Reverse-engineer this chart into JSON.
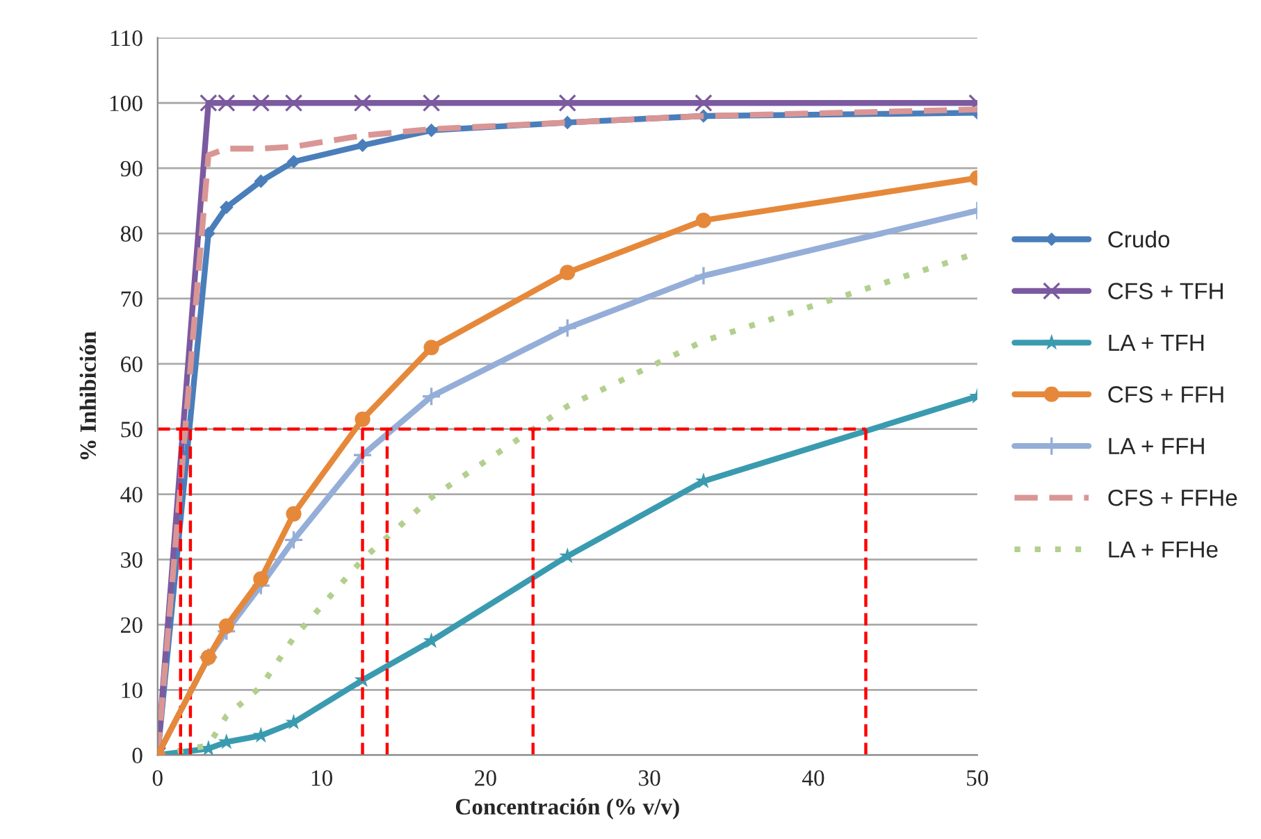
{
  "chart_data": {
    "type": "line",
    "xlabel": "Concentración (% v/v)",
    "ylabel": "% Inhibición",
    "xlim": [
      0,
      50
    ],
    "xticks": [
      0,
      10,
      20,
      30,
      40,
      50
    ],
    "ylim": [
      0,
      110
    ],
    "yticks": [
      0,
      10,
      20,
      30,
      40,
      50,
      60,
      70,
      80,
      90,
      100,
      110
    ],
    "grid": "y",
    "legend": "right",
    "x": [
      0,
      3.1,
      4.2,
      6.3,
      8.3,
      12.5,
      16.7,
      25,
      33.3,
      50
    ],
    "series": [
      {
        "name": "Crudo",
        "color": "#4a7ebb",
        "marker": "diamond",
        "line_style": "solid",
        "values": [
          0,
          80,
          84,
          88,
          91,
          93.5,
          95.8,
          97,
          98,
          98.5
        ]
      },
      {
        "name": "CFS + TFH",
        "color": "#7b5aa0",
        "marker": "cross",
        "line_style": "solid",
        "values": [
          0,
          100,
          100,
          100,
          100,
          100,
          100,
          100,
          100,
          100
        ]
      },
      {
        "name": "LA + TFH",
        "color": "#3a9bb0",
        "marker": "star",
        "line_style": "solid",
        "values": [
          0,
          1,
          2,
          3,
          5,
          11.5,
          17.5,
          30.5,
          42,
          55
        ]
      },
      {
        "name": "CFS + FFH",
        "color": "#e6883a",
        "marker": "circle",
        "line_style": "solid",
        "values": [
          0,
          15,
          19.8,
          27,
          37,
          51.5,
          62.5,
          74,
          82,
          88.5
        ]
      },
      {
        "name": "LA + FFH",
        "color": "#94aed8",
        "marker": "plus",
        "line_style": "solid",
        "values": [
          0,
          15,
          19,
          26,
          33,
          46,
          55,
          65.5,
          73.5,
          83.5
        ]
      },
      {
        "name": "CFS + FFHe",
        "color": "#d99694",
        "marker": "none",
        "line_style": "dashed",
        "values": [
          0,
          92,
          93,
          93,
          93.3,
          95,
          96,
          97,
          98,
          99
        ]
      },
      {
        "name": "LA + FFHe",
        "color": "#b3cf8e",
        "marker": "none",
        "line_style": "dotted",
        "values": [
          0,
          1.5,
          6,
          10.5,
          18,
          30,
          39.5,
          53.5,
          63.5,
          77
        ]
      },
      {
        "color": "#ff0000",
        "marker": "none",
        "line_style": "dashed",
        "x": [
          0,
          43.2
        ],
        "values": [
          50,
          50
        ]
      },
      {
        "color": "#ff0000",
        "marker": "none",
        "line_style": "dashed",
        "x": [
          1.4,
          1.4
        ],
        "values": [
          0,
          50
        ]
      },
      {
        "color": "#ff0000",
        "marker": "none",
        "line_style": "dashed",
        "x": [
          2.0,
          2.0
        ],
        "values": [
          0,
          50
        ]
      },
      {
        "color": "#ff0000",
        "marker": "none",
        "line_style": "dashed",
        "x": [
          12.5,
          12.5
        ],
        "values": [
          0,
          50
        ]
      },
      {
        "color": "#ff0000",
        "marker": "none",
        "line_style": "dashed",
        "x": [
          14,
          14
        ],
        "values": [
          0,
          50
        ]
      },
      {
        "color": "#ff0000",
        "marker": "none",
        "line_style": "dashed",
        "x": [
          22.9,
          22.9
        ],
        "values": [
          0,
          50
        ]
      },
      {
        "color": "#ff0000",
        "marker": "none",
        "line_style": "dashed",
        "x": [
          43.2,
          43.2
        ],
        "values": [
          0,
          50
        ]
      }
    ]
  }
}
